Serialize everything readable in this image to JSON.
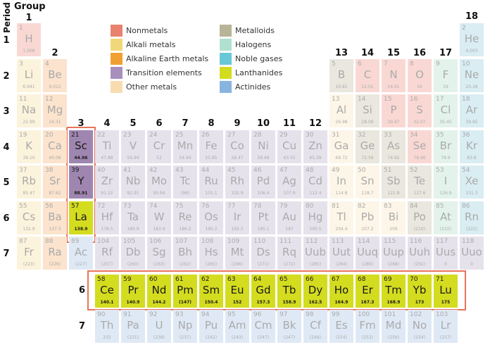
{
  "headers": {
    "period": "Period",
    "group": "Group"
  },
  "group_labels": [
    "1",
    "2",
    "3",
    "4",
    "5",
    "6",
    "7",
    "8",
    "9",
    "10",
    "11",
    "12",
    "13",
    "14",
    "15",
    "16",
    "17",
    "18"
  ],
  "period_labels": [
    "1",
    "2",
    "3",
    "4",
    "5",
    "6",
    "7"
  ],
  "series_labels": {
    "lanthanide": "6",
    "actinide": "7"
  },
  "legend": [
    {
      "key": "nonmetal",
      "label": "Nonmetals",
      "color": "#e8826e"
    },
    {
      "key": "alkali",
      "label": "Alkali metals",
      "color": "#f0d878"
    },
    {
      "key": "alkaline",
      "label": "Alkaline Earth metals",
      "color": "#f0a030"
    },
    {
      "key": "transition",
      "label": "Transition elements",
      "color": "#a890bc"
    },
    {
      "key": "other",
      "label": "Other metals",
      "color": "#f8dcb0"
    },
    {
      "key": "metalloid",
      "label": "Metalloids",
      "color": "#b8b498"
    },
    {
      "key": "halogen",
      "label": "Halogens",
      "color": "#b0e0d0"
    },
    {
      "key": "noble",
      "label": "Noble gases",
      "color": "#68c8d8"
    },
    {
      "key": "lanthanide",
      "label": "Lanthanides",
      "color": "#d4dc1f"
    },
    {
      "key": "actinide",
      "label": "Actinides",
      "color": "#88b4e0"
    }
  ],
  "faded_colors": {
    "nonmetal": "#f9d8d4",
    "alkali": "#fcf3dc",
    "alkaline": "#fbe3cd",
    "transition": "#e6e2ec",
    "other": "#fdf6e8",
    "metalloid": "#e9e7de",
    "halogen": "#e3f3ec",
    "noble": "#d9edf3",
    "lanthanide": "#eef2b8",
    "actinide": "#dfe9f5"
  },
  "highlight_color_transition": "#9f86b0",
  "highlighted": [
    "Sc",
    "Y",
    "La",
    "Ce",
    "Pr",
    "Nd",
    "Pm",
    "Sm",
    "Eu",
    "Gd",
    "Tb",
    "Dy",
    "Ho",
    "Er",
    "Tm",
    "Yb",
    "Lu"
  ],
  "elements": [
    [
      "1",
      "H",
      "1.008",
      "nonmetal",
      1,
      1
    ],
    [
      "2",
      "He",
      "4.003",
      "noble",
      18,
      1
    ],
    [
      "3",
      "Li",
      "6.941",
      "alkali",
      1,
      2
    ],
    [
      "4",
      "Be",
      "9.012",
      "alkaline",
      2,
      2
    ],
    [
      "5",
      "B",
      "10.81",
      "metalloid",
      13,
      2
    ],
    [
      "6",
      "C",
      "12.01",
      "nonmetal",
      14,
      2
    ],
    [
      "7",
      "N",
      "14.01",
      "nonmetal",
      15,
      2
    ],
    [
      "8",
      "O",
      "16",
      "nonmetal",
      16,
      2
    ],
    [
      "9",
      "F",
      "19",
      "halogen",
      17,
      2
    ],
    [
      "10",
      "Ne",
      "20.18",
      "noble",
      18,
      2
    ],
    [
      "11",
      "Na",
      "22.99",
      "alkali",
      1,
      3
    ],
    [
      "12",
      "Mg",
      "24.31",
      "alkaline",
      2,
      3
    ],
    [
      "13",
      "Al",
      "26.98",
      "other",
      13,
      3
    ],
    [
      "14",
      "Si",
      "28.09",
      "metalloid",
      14,
      3
    ],
    [
      "15",
      "P",
      "30.97",
      "nonmetal",
      15,
      3
    ],
    [
      "16",
      "S",
      "32.07",
      "nonmetal",
      16,
      3
    ],
    [
      "17",
      "Cl",
      "35.45",
      "halogen",
      17,
      3
    ],
    [
      "18",
      "Ar",
      "39.95",
      "noble",
      18,
      3
    ],
    [
      "19",
      "K",
      "39.10",
      "alkali",
      1,
      4
    ],
    [
      "20",
      "Ca",
      "40.08",
      "alkaline",
      2,
      4
    ],
    [
      "21",
      "Sc",
      "44.96",
      "transition",
      3,
      4
    ],
    [
      "22",
      "Ti",
      "47.88",
      "transition",
      4,
      4
    ],
    [
      "23",
      "V",
      "50.94",
      "transition",
      5,
      4
    ],
    [
      "24",
      "Cr",
      "52",
      "transition",
      6,
      4
    ],
    [
      "25",
      "Mn",
      "54.94",
      "transition",
      7,
      4
    ],
    [
      "26",
      "Fe",
      "55.85",
      "transition",
      8,
      4
    ],
    [
      "27",
      "Co",
      "58.47",
      "transition",
      9,
      4
    ],
    [
      "28",
      "Ni",
      "58.69",
      "transition",
      10,
      4
    ],
    [
      "29",
      "Cu",
      "63.55",
      "transition",
      11,
      4
    ],
    [
      "30",
      "Zn",
      "65.39",
      "transition",
      12,
      4
    ],
    [
      "31",
      "Ga",
      "69.72",
      "other",
      13,
      4
    ],
    [
      "32",
      "Ge",
      "72.59",
      "metalloid",
      14,
      4
    ],
    [
      "33",
      "As",
      "74.92",
      "metalloid",
      15,
      4
    ],
    [
      "34",
      "Se",
      "78.96",
      "nonmetal",
      16,
      4
    ],
    [
      "35",
      "Br",
      "79.9",
      "halogen",
      17,
      4
    ],
    [
      "36",
      "Kr",
      "83.8",
      "noble",
      18,
      4
    ],
    [
      "37",
      "Rb",
      "85.47",
      "alkali",
      1,
      5
    ],
    [
      "38",
      "Sr",
      "87.62",
      "alkaline",
      2,
      5
    ],
    [
      "39",
      "Y",
      "88.91",
      "transition",
      3,
      5
    ],
    [
      "40",
      "Zr",
      "91.22",
      "transition",
      4,
      5
    ],
    [
      "41",
      "Nb",
      "92.91",
      "transition",
      5,
      5
    ],
    [
      "42",
      "Mo",
      "95.94",
      "transition",
      6,
      5
    ],
    [
      "43",
      "Tc",
      "(98)",
      "transition",
      7,
      5
    ],
    [
      "44",
      "Ru",
      "101.1",
      "transition",
      8,
      5
    ],
    [
      "45",
      "Rh",
      "102.9",
      "transition",
      9,
      5
    ],
    [
      "46",
      "Pd",
      "106.4",
      "transition",
      10,
      5
    ],
    [
      "47",
      "Ag",
      "107.9",
      "transition",
      11,
      5
    ],
    [
      "48",
      "Cd",
      "112.4",
      "transition",
      12,
      5
    ],
    [
      "49",
      "In",
      "114.8",
      "other",
      13,
      5
    ],
    [
      "50",
      "Sn",
      "118.7",
      "other",
      14,
      5
    ],
    [
      "51",
      "Sb",
      "121.8",
      "metalloid",
      15,
      5
    ],
    [
      "52",
      "Te",
      "127.6",
      "metalloid",
      16,
      5
    ],
    [
      "53",
      "I",
      "126.9",
      "halogen",
      17,
      5
    ],
    [
      "54",
      "Xe",
      "131.3",
      "noble",
      18,
      5
    ],
    [
      "55",
      "Cs",
      "132.9",
      "alkali",
      1,
      6
    ],
    [
      "56",
      "Ba",
      "137.3",
      "alkaline",
      2,
      6
    ],
    [
      "57",
      "La",
      "138.9",
      "lanthanide",
      3,
      6
    ],
    [
      "72",
      "Hf",
      "178.5",
      "transition",
      4,
      6
    ],
    [
      "73",
      "Ta",
      "180.9",
      "transition",
      5,
      6
    ],
    [
      "74",
      "W",
      "183.9",
      "transition",
      6,
      6
    ],
    [
      "75",
      "Re",
      "186.2",
      "transition",
      7,
      6
    ],
    [
      "76",
      "Os",
      "190.2",
      "transition",
      8,
      6
    ],
    [
      "77",
      "Ir",
      "192.2",
      "transition",
      9,
      6
    ],
    [
      "78",
      "Pt",
      "195.1",
      "transition",
      10,
      6
    ],
    [
      "79",
      "Au",
      "197",
      "transition",
      11,
      6
    ],
    [
      "80",
      "Hg",
      "200.5",
      "transition",
      12,
      6
    ],
    [
      "81",
      "Tl",
      "204.4",
      "other",
      13,
      6
    ],
    [
      "82",
      "Pb",
      "207.2",
      "other",
      14,
      6
    ],
    [
      "83",
      "Bi",
      "209",
      "other",
      15,
      6
    ],
    [
      "84",
      "Po",
      "(210)",
      "metalloid",
      16,
      6
    ],
    [
      "85",
      "At",
      "(210)",
      "halogen",
      17,
      6
    ],
    [
      "86",
      "Rn",
      "(222)",
      "noble",
      18,
      6
    ],
    [
      "87",
      "Fr",
      "(223)",
      "alkali",
      1,
      7
    ],
    [
      "88",
      "Ra",
      "(226)",
      "alkaline",
      2,
      7
    ],
    [
      "89",
      "Ac",
      "(227)",
      "actinide",
      3,
      7
    ],
    [
      "104",
      "Rf",
      "(257)",
      "transition",
      4,
      7
    ],
    [
      "105",
      "Db",
      "(260)",
      "transition",
      5,
      7
    ],
    [
      "106",
      "Sg",
      "(263)",
      "transition",
      6,
      7
    ],
    [
      "107",
      "Bh",
      "(262)",
      "transition",
      7,
      7
    ],
    [
      "108",
      "Hs",
      "(265)",
      "transition",
      8,
      7
    ],
    [
      "109",
      "Mt",
      "(266)",
      "transition",
      9,
      7
    ],
    [
      "110",
      "Ds",
      "(271)",
      "transition",
      10,
      7
    ],
    [
      "111",
      "Rq",
      "(272)",
      "transition",
      11,
      7
    ],
    [
      "112",
      "Uub",
      "(285)",
      "transition",
      12,
      7
    ],
    [
      "113",
      "Uut",
      "(284)",
      "transition",
      13,
      7
    ],
    [
      "114",
      "Uuq",
      "(289)",
      "transition",
      14,
      7
    ],
    [
      "115",
      "Uup",
      "(288)",
      "transition",
      15,
      7
    ],
    [
      "116",
      "Uuh",
      "(292)",
      "transition",
      16,
      7
    ],
    [
      "117",
      "Uus",
      "0",
      "transition",
      17,
      7
    ],
    [
      "118",
      "Uuo",
      "0",
      "transition",
      18,
      7
    ],
    [
      "58",
      "Ce",
      "140.1",
      "lanthanide",
      4,
      8
    ],
    [
      "59",
      "Pr",
      "140.9",
      "lanthanide",
      5,
      8
    ],
    [
      "60",
      "Nd",
      "144.2",
      "lanthanide",
      6,
      8
    ],
    [
      "61",
      "Pm",
      "(147)",
      "lanthanide",
      7,
      8
    ],
    [
      "62",
      "Sm",
      "150.4",
      "lanthanide",
      8,
      8
    ],
    [
      "63",
      "Eu",
      "152",
      "lanthanide",
      9,
      8
    ],
    [
      "64",
      "Gd",
      "157.3",
      "lanthanide",
      10,
      8
    ],
    [
      "65",
      "Tb",
      "158.9",
      "lanthanide",
      11,
      8
    ],
    [
      "66",
      "Dy",
      "162.5",
      "lanthanide",
      12,
      8
    ],
    [
      "67",
      "Ho",
      "164.9",
      "lanthanide",
      13,
      8
    ],
    [
      "68",
      "Er",
      "167.3",
      "lanthanide",
      14,
      8
    ],
    [
      "69",
      "Tm",
      "168.9",
      "lanthanide",
      15,
      8
    ],
    [
      "70",
      "Yb",
      "173",
      "lanthanide",
      16,
      8
    ],
    [
      "71",
      "Lu",
      "175",
      "lanthanide",
      17,
      8
    ],
    [
      "90",
      "Th",
      "232",
      "actinide",
      4,
      9
    ],
    [
      "91",
      "Pa",
      "(231)",
      "actinide",
      5,
      9
    ],
    [
      "92",
      "U",
      "(238)",
      "actinide",
      6,
      9
    ],
    [
      "93",
      "Np",
      "(237)",
      "actinide",
      7,
      9
    ],
    [
      "94",
      "Pu",
      "(242)",
      "actinide",
      8,
      9
    ],
    [
      "95",
      "Am",
      "(243)",
      "actinide",
      9,
      9
    ],
    [
      "96",
      "Cm",
      "(247)",
      "actinide",
      10,
      9
    ],
    [
      "97",
      "Bk",
      "(247)",
      "actinide",
      11,
      9
    ],
    [
      "98",
      "Cf",
      "(249)",
      "actinide",
      12,
      9
    ],
    [
      "99",
      "Es",
      "(254)",
      "actinide",
      13,
      9
    ],
    [
      "100",
      "Fm",
      "(253)",
      "actinide",
      14,
      9
    ],
    [
      "101",
      "Md",
      "(256)",
      "actinide",
      15,
      9
    ],
    [
      "102",
      "No",
      "(254)",
      "actinide",
      16,
      9
    ],
    [
      "103",
      "Lr",
      "(257)",
      "actinide",
      17,
      9
    ]
  ]
}
